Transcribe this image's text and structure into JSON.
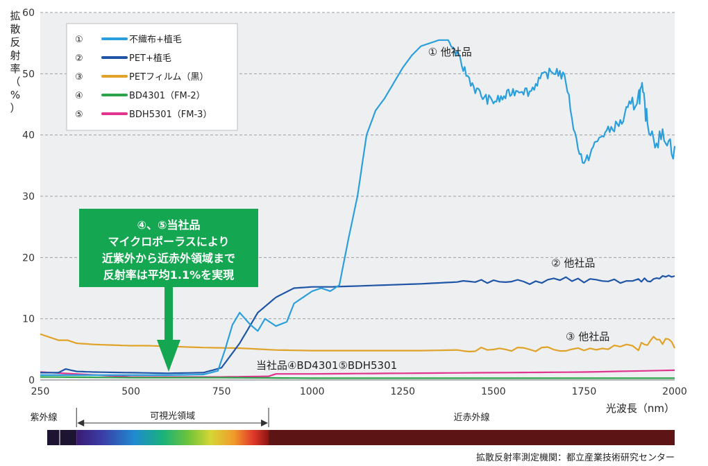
{
  "chart_data": {
    "type": "line",
    "ylabel": "拡散反射率（%）",
    "xlabel": "光波長（nm）",
    "xlim": [
      250,
      2000
    ],
    "ylim": [
      0,
      60
    ],
    "x_ticks": [
      "250",
      "500",
      "750",
      "1000",
      "1250",
      "1500",
      "1750",
      "2000"
    ],
    "y_ticks": [
      "0",
      "10",
      "20",
      "30",
      "40",
      "50",
      "60"
    ],
    "grid": "horizontal dashed",
    "legend_position": "top-left",
    "series": [
      {
        "name": "不織布+植毛",
        "marker": "①",
        "color": "#2a9fdc",
        "points": [
          [
            250,
            0.8
          ],
          [
            300,
            0.8
          ],
          [
            350,
            0.8
          ],
          [
            400,
            0.8
          ],
          [
            500,
            0.8
          ],
          [
            600,
            0.8
          ],
          [
            700,
            0.9
          ],
          [
            740,
            1.5
          ],
          [
            760,
            5
          ],
          [
            780,
            9
          ],
          [
            800,
            11
          ],
          [
            830,
            9
          ],
          [
            850,
            8
          ],
          [
            870,
            10
          ],
          [
            900,
            8.8
          ],
          [
            930,
            9.5
          ],
          [
            950,
            12.5
          ],
          [
            975,
            13.5
          ],
          [
            1000,
            14.5
          ],
          [
            1025,
            15
          ],
          [
            1050,
            14.5
          ],
          [
            1075,
            15.5
          ],
          [
            1100,
            23
          ],
          [
            1125,
            30
          ],
          [
            1150,
            40
          ],
          [
            1175,
            44
          ],
          [
            1200,
            46
          ],
          [
            1225,
            48.5
          ],
          [
            1250,
            51
          ],
          [
            1275,
            53
          ],
          [
            1300,
            54.5
          ],
          [
            1325,
            55
          ],
          [
            1350,
            55.5
          ],
          [
            1375,
            55.5
          ],
          [
            1400,
            53
          ],
          [
            1425,
            50
          ],
          [
            1450,
            47.5
          ],
          [
            1475,
            46
          ],
          [
            1500,
            45.5
          ],
          [
            1525,
            46
          ],
          [
            1550,
            47
          ],
          [
            1575,
            47.5
          ],
          [
            1600,
            47
          ],
          [
            1625,
            49
          ],
          [
            1650,
            50
          ],
          [
            1675,
            50.5
          ],
          [
            1700,
            49
          ],
          [
            1725,
            40
          ],
          [
            1750,
            35
          ],
          [
            1775,
            38
          ],
          [
            1800,
            40
          ],
          [
            1825,
            41
          ],
          [
            1850,
            42
          ],
          [
            1875,
            44
          ],
          [
            1900,
            46.5
          ],
          [
            1910,
            47
          ],
          [
            1925,
            42
          ],
          [
            1950,
            39
          ],
          [
            1975,
            40
          ],
          [
            2000,
            37
          ]
        ]
      },
      {
        "name": "PET+植毛",
        "marker": "②",
        "color": "#1f55a6",
        "points": [
          [
            250,
            1.2
          ],
          [
            300,
            1.2
          ],
          [
            320,
            1.8
          ],
          [
            350,
            1.4
          ],
          [
            400,
            1.3
          ],
          [
            500,
            1.2
          ],
          [
            600,
            1.1
          ],
          [
            700,
            1.2
          ],
          [
            750,
            2
          ],
          [
            800,
            6
          ],
          [
            850,
            11
          ],
          [
            900,
            13.5
          ],
          [
            950,
            15
          ],
          [
            1000,
            15.2
          ],
          [
            1050,
            15.2
          ],
          [
            1100,
            15.3
          ],
          [
            1200,
            15.5
          ],
          [
            1300,
            15.7
          ],
          [
            1400,
            16
          ],
          [
            1500,
            16
          ],
          [
            1600,
            16
          ],
          [
            1700,
            16.5
          ],
          [
            1800,
            16
          ],
          [
            1900,
            16.2
          ],
          [
            1950,
            16.5
          ],
          [
            2000,
            17
          ]
        ]
      },
      {
        "name": "PETフィルム（黒）",
        "marker": "③",
        "color": "#e0a227",
        "points": [
          [
            250,
            7.5
          ],
          [
            275,
            7
          ],
          [
            300,
            6.5
          ],
          [
            325,
            6.5
          ],
          [
            350,
            6
          ],
          [
            400,
            5.8
          ],
          [
            450,
            5.7
          ],
          [
            500,
            5.6
          ],
          [
            550,
            5.6
          ],
          [
            600,
            5.5
          ],
          [
            700,
            5.3
          ],
          [
            800,
            5.2
          ],
          [
            900,
            4.9
          ],
          [
            1000,
            4.8
          ],
          [
            1100,
            4.8
          ],
          [
            1200,
            4.8
          ],
          [
            1300,
            4.8
          ],
          [
            1400,
            4.9
          ],
          [
            1500,
            5
          ],
          [
            1600,
            5
          ],
          [
            1700,
            5.1
          ],
          [
            1800,
            5.2
          ],
          [
            1900,
            5.5
          ],
          [
            1950,
            7
          ],
          [
            2000,
            5.5
          ]
        ]
      },
      {
        "name": "BD4301（FM-2）",
        "marker": "④",
        "color": "#2aa44a",
        "points": [
          [
            250,
            0.5
          ],
          [
            500,
            0.4
          ],
          [
            750,
            0.4
          ],
          [
            1000,
            0.3
          ],
          [
            1250,
            0.3
          ],
          [
            1500,
            0.3
          ],
          [
            1750,
            0.3
          ],
          [
            2000,
            0.3
          ]
        ]
      },
      {
        "name": "BDH5301（FM-3）",
        "marker": "⑤",
        "color": "#e0348e",
        "points": [
          [
            250,
            1.3
          ],
          [
            500,
            0.5
          ],
          [
            750,
            0.5
          ],
          [
            880,
            0.6
          ],
          [
            900,
            1
          ],
          [
            1000,
            1
          ],
          [
            1250,
            1.1
          ],
          [
            1500,
            1.2
          ],
          [
            1750,
            1.3
          ],
          [
            2000,
            1.6
          ]
        ]
      }
    ],
    "annotations": [
      {
        "text": "①  他社品",
        "x": 1380,
        "y": 53
      },
      {
        "text": "②  他社品",
        "x": 1720,
        "y": 18.5
      },
      {
        "text": "③  他社品",
        "x": 1760,
        "y": 6.5
      },
      {
        "text": "当社品④BD4301⑤BDH5301",
        "x": 1040,
        "y": 1.8
      }
    ],
    "callout": {
      "lines": [
        "④、⑤当社品",
        "マイクロポーラスにより",
        "近紫外から近赤外領域まで",
        "反射率は平均1.1%を実現"
      ],
      "color": "#14a650"
    }
  },
  "spectrum_regions": [
    {
      "label": "紫外線"
    },
    {
      "label": "可視光領域"
    },
    {
      "label": "近赤外線"
    }
  ],
  "footer": "拡散反射率測定機関：都立産業技術研究センター"
}
